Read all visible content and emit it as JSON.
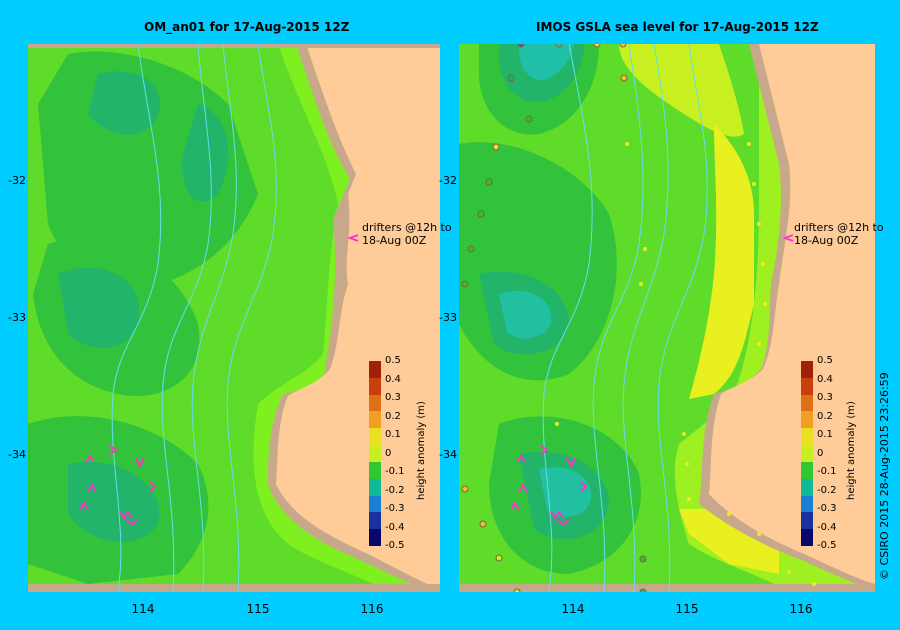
{
  "panels": [
    {
      "title": "OM_an01  for 17-Aug-2015 12Z"
    },
    {
      "title": "IMOS GSLA sea level  for 17-Aug-2015 12Z"
    }
  ],
  "lat_ticks": [
    "-32",
    "-33",
    "-34"
  ],
  "lon_ticks": [
    "114",
    "115",
    "116"
  ],
  "colorbar": {
    "title": "height anomaly (m)",
    "ticks": [
      "0.5",
      "0.4",
      "0.3",
      "0.2",
      "0.1",
      "0",
      "-0.1",
      "-0.2",
      "-0.3",
      "-0.4",
      "-0.5"
    ],
    "colors": [
      "#a0200a",
      "#c84010",
      "#e07018",
      "#f0a020",
      "#e8e020",
      "#c8f020",
      "#30c830",
      "#10b898",
      "#1880d0",
      "#1830a0",
      "#08086a"
    ]
  },
  "drifter_note": {
    "line1": "drifters @12h to",
    "line2": "18-Aug 00Z"
  },
  "copyright": "© CSIRO 2015   28-Aug-2015 23:26:59",
  "colors": {
    "land": "#ffcc99",
    "shelf": "#c8a88a",
    "background": "#00ccff",
    "drifter": "#ff33cc",
    "bathy": "#66ddee"
  }
}
